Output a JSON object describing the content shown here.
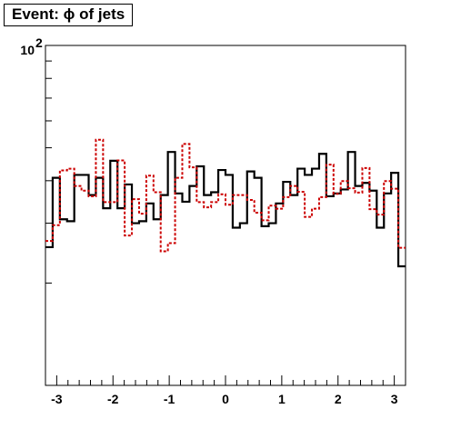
{
  "chart_data": {
    "type": "histogram",
    "title": "Event: ϕ of jets",
    "xlabel": "",
    "ylabel": "",
    "xlim": [
      -3.2,
      3.2
    ],
    "ylim": [
      10,
      100
    ],
    "log_y": true,
    "x_ticks": [
      "-3",
      "-2",
      "-1",
      "0",
      "1",
      "2",
      "3"
    ],
    "y_tick_label": "10",
    "y_tick_exponent": "2",
    "grid": false,
    "legend": "none",
    "bin_count": 50,
    "series": [
      {
        "color": "#000000",
        "style": "solid",
        "values": [
          25.5,
          40.8,
          30.8,
          30.4,
          41.6,
          41.6,
          36.3,
          40.8,
          33.2,
          45.8,
          33.2,
          39.0,
          30.0,
          30.4,
          34.3,
          30.8,
          36.3,
          48.6,
          36.7,
          34.7,
          38.6,
          44.1,
          36.3,
          37.0,
          43.0,
          41.6,
          29.1,
          30.0,
          42.6,
          40.8,
          29.4,
          30.0,
          34.3,
          39.7,
          36.3,
          43.4,
          41.6,
          43.4,
          48.0,
          36.0,
          36.7,
          37.7,
          48.6,
          38.6,
          39.4,
          37.4,
          29.1,
          36.7,
          42.2,
          22.4
        ]
      },
      {
        "color": "#cc0000",
        "style": "dashed",
        "values": [
          26.6,
          29.6,
          42.9,
          43.4,
          38.6,
          37.4,
          36.0,
          52.8,
          34.6,
          34.6,
          45.9,
          27.6,
          35.3,
          32.0,
          41.4,
          37.0,
          24.8,
          26.2,
          40.8,
          51.3,
          43.8,
          34.6,
          33.4,
          34.6,
          36.5,
          34.0,
          36.3,
          36.3,
          35.1,
          32.2,
          30.6,
          33.8,
          33.1,
          35.8,
          38.6,
          37.1,
          31.3,
          33.1,
          35.8,
          44.6,
          36.6,
          39.9,
          38.0,
          36.9,
          43.6,
          33.0,
          31.8,
          39.9,
          37.9,
          25.4
        ]
      }
    ]
  }
}
